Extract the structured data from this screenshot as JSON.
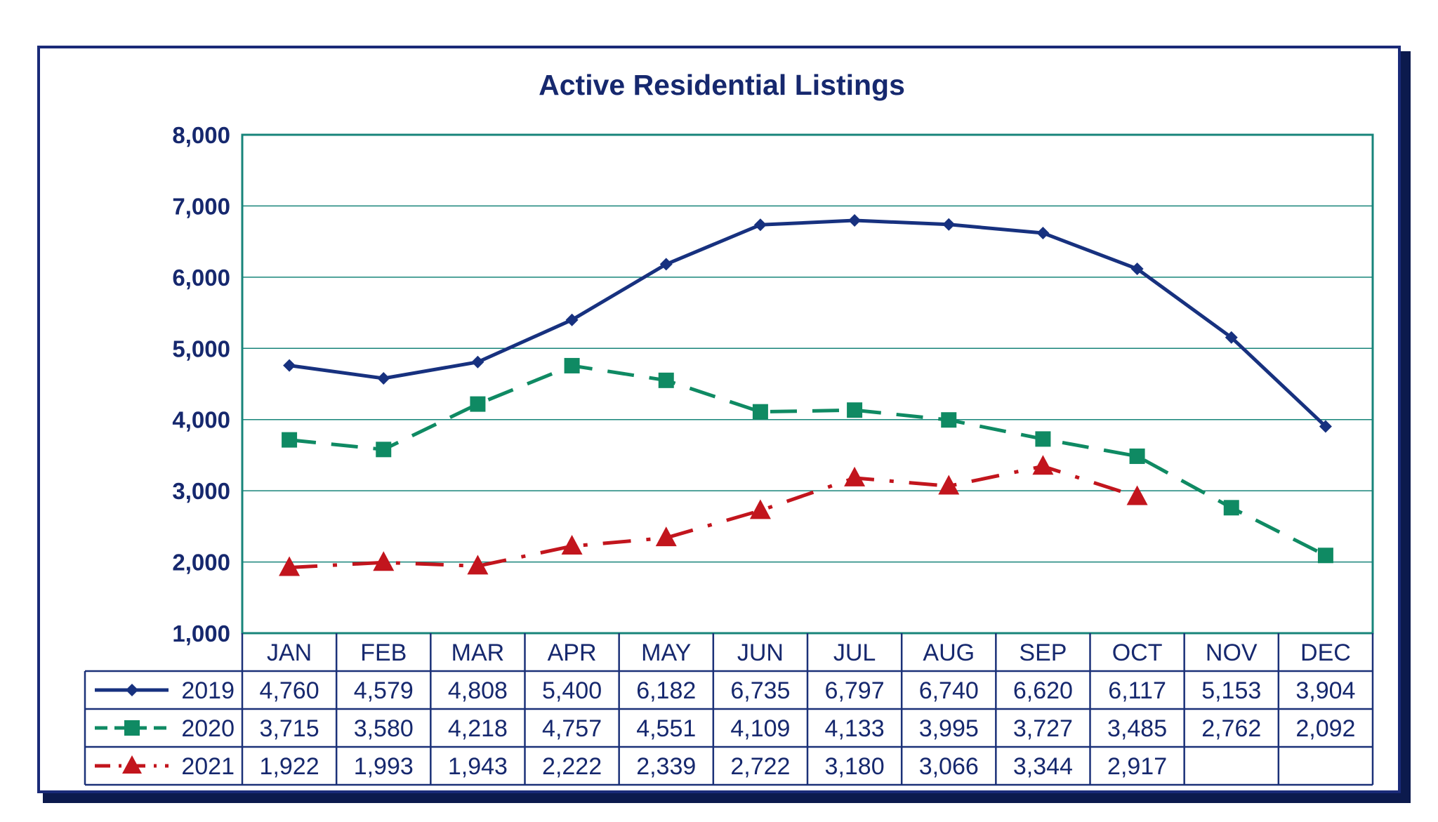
{
  "chart_data": {
    "type": "line",
    "title": "Active Residential Listings",
    "categories": [
      "JAN",
      "FEB",
      "MAR",
      "APR",
      "MAY",
      "JUN",
      "JUL",
      "AUG",
      "SEP",
      "OCT",
      "NOV",
      "DEC"
    ],
    "ylim": [
      1000,
      8000
    ],
    "yticks": [
      1000,
      2000,
      3000,
      4000,
      5000,
      6000,
      7000,
      8000
    ],
    "ytick_labels": [
      "1,000",
      "2,000",
      "3,000",
      "4,000",
      "5,000",
      "6,000",
      "7,000",
      "8,000"
    ],
    "grid": true,
    "series": [
      {
        "name": "2019",
        "color": "#17317f",
        "marker": "diamond",
        "line_style": "solid",
        "values": [
          4760,
          4579,
          4808,
          5400,
          6182,
          6735,
          6797,
          6740,
          6620,
          6117,
          5153,
          3904
        ],
        "labels": [
          "4,760",
          "4,579",
          "4,808",
          "5,400",
          "6,182",
          "6,735",
          "6,797",
          "6,740",
          "6,620",
          "6,117",
          "5,153",
          "3,904"
        ]
      },
      {
        "name": "2020",
        "color": "#0f8a63",
        "marker": "square",
        "line_style": "dashed",
        "values": [
          3715,
          3580,
          4218,
          4757,
          4551,
          4109,
          4133,
          3995,
          3727,
          3485,
          2762,
          2092
        ],
        "labels": [
          "3,715",
          "3,580",
          "4,218",
          "4,757",
          "4,551",
          "4,109",
          "4,133",
          "3,995",
          "3,727",
          "3,485",
          "2,762",
          "2,092"
        ]
      },
      {
        "name": "2021",
        "color": "#c2151d",
        "marker": "triangle",
        "line_style": "dash-dot",
        "values": [
          1922,
          1993,
          1943,
          2222,
          2339,
          2722,
          3180,
          3066,
          3344,
          2917,
          null,
          null
        ],
        "labels": [
          "1,922",
          "1,993",
          "1,943",
          "2,222",
          "2,339",
          "2,722",
          "3,180",
          "3,066",
          "3,344",
          "2,917",
          "",
          ""
        ]
      }
    ]
  }
}
